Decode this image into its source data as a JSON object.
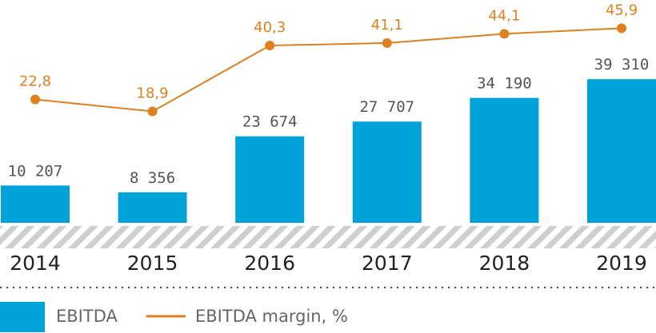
{
  "chart_data": {
    "type": "bar",
    "categories": [
      "2014",
      "2015",
      "2016",
      "2017",
      "2018",
      "2019"
    ],
    "highlight_category_index": 0,
    "series": [
      {
        "name": "EBITDA",
        "type": "bar",
        "values": [
          10207,
          8356,
          23674,
          27707,
          34190,
          39310
        ],
        "labels": [
          "10 207",
          "8 356",
          "23 674",
          "27 707",
          "34 190",
          "39 310"
        ],
        "color": "#00a3d9"
      },
      {
        "name": "EBITDA margin, %",
        "type": "line",
        "values": [
          22.8,
          18.9,
          40.3,
          41.1,
          44.1,
          45.9
        ],
        "labels": [
          "22,8",
          "18,9",
          "40,3",
          "41,1",
          "44,1",
          "45,9"
        ],
        "color": "#e07f1d"
      }
    ],
    "colors": {
      "highlight_tick": "#1a8fc4",
      "tick": "#222222",
      "hatch": "#cfcfcf",
      "legend_text": "#666666"
    },
    "legend": {
      "position": "bottom",
      "entries": [
        "EBITDA",
        "EBITDA margin, %"
      ]
    }
  }
}
